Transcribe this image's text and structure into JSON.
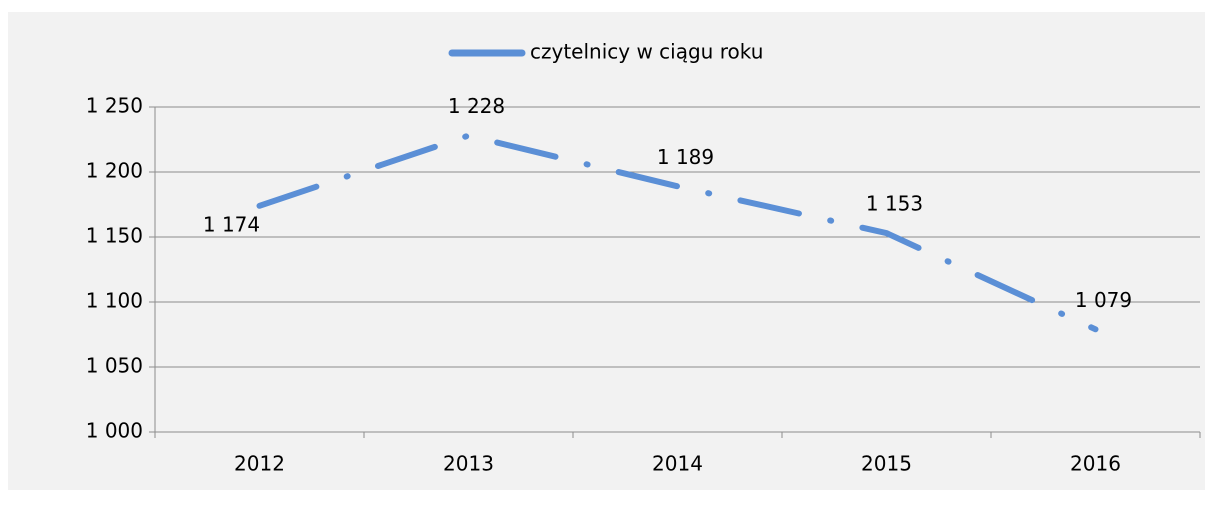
{
  "chart_data": {
    "type": "line",
    "categories": [
      "2012",
      "2013",
      "2014",
      "2015",
      "2016"
    ],
    "series": [
      {
        "name": "czytelnicy w ciągu roku",
        "color": "#5b8fd6",
        "values": [
          1174,
          1228,
          1189,
          1153,
          1079
        ],
        "value_labels": [
          "1 174",
          "1 228",
          "1 189",
          "1 153",
          "1 079"
        ]
      }
    ],
    "ylim": [
      1000,
      1250
    ],
    "yticks": [
      {
        "value": 1000,
        "label": "1 000"
      },
      {
        "value": 1050,
        "label": "1 050"
      },
      {
        "value": 1100,
        "label": "1 100"
      },
      {
        "value": 1150,
        "label": "1 150"
      },
      {
        "value": 1200,
        "label": "1 200"
      },
      {
        "value": 1250,
        "label": "1 250"
      }
    ],
    "grid": true,
    "legend": "top"
  }
}
